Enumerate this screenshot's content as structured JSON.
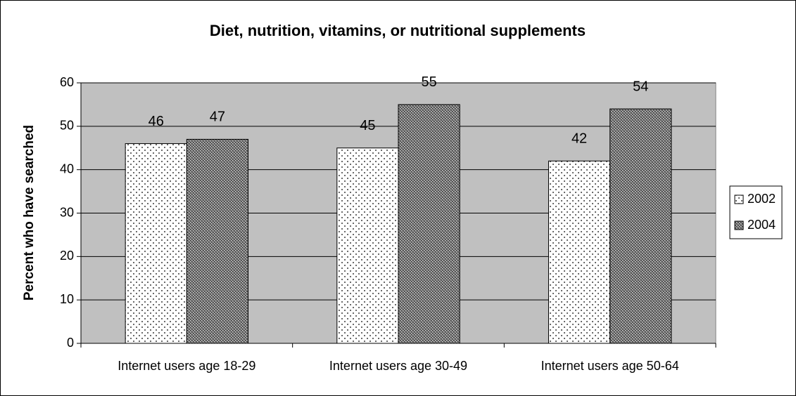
{
  "chart_data": {
    "type": "bar",
    "title": "Diet, nutrition, vitamins, or nutritional supplements",
    "y_label": "Percent who have searched",
    "categories": [
      "Internet users age 18-29",
      "Internet users age 30-49",
      "Internet users age 50-64"
    ],
    "series": [
      {
        "name": "2002",
        "color": "#ffffff",
        "values": [
          46,
          45,
          42
        ]
      },
      {
        "name": "2004",
        "color": "#8c8c8c",
        "values": [
          47,
          55,
          54
        ]
      }
    ],
    "ylim": [
      0,
      60
    ],
    "yticks": [
      0,
      10,
      20,
      30,
      40,
      50,
      60
    ],
    "grid": true,
    "legend": "right"
  }
}
